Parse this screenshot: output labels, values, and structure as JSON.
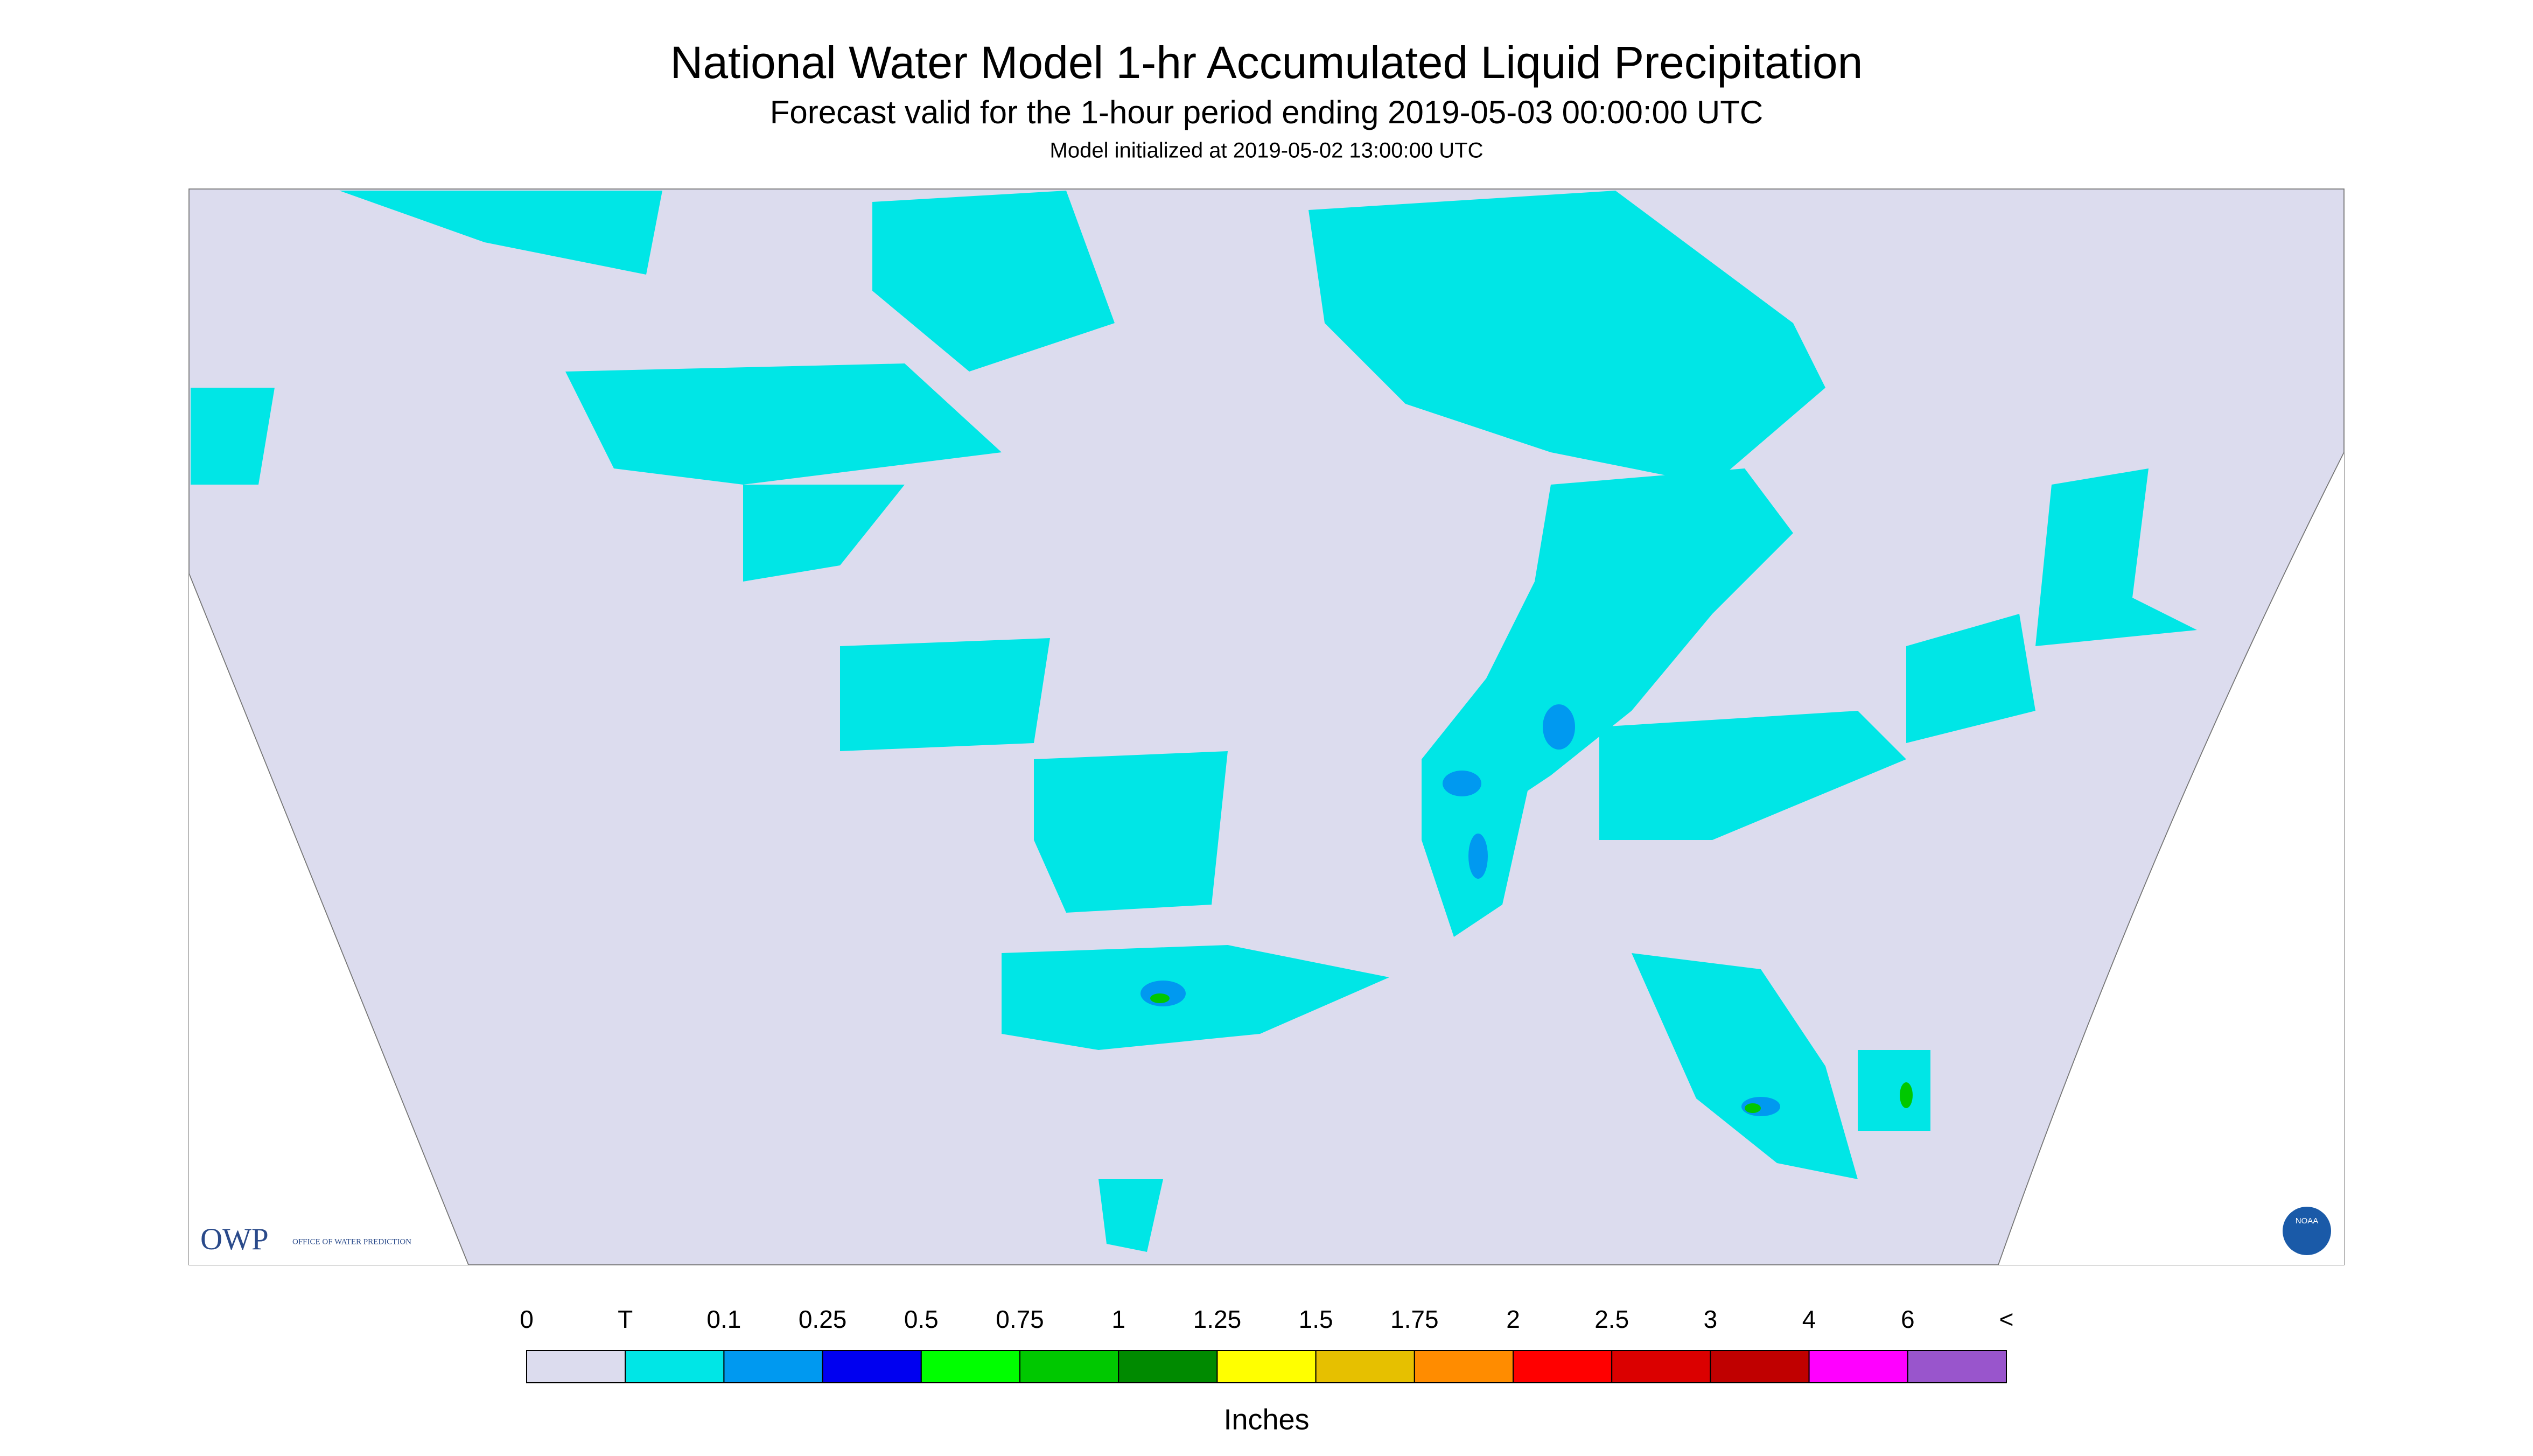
{
  "header": {
    "title": "National Water Model 1-hr Accumulated Liquid Precipitation",
    "subtitle": "Forecast valid for the 1-hour period ending 2019-05-03 00:00:00 UTC",
    "initialized": "Model initialized at 2019-05-02 13:00:00 UTC"
  },
  "logo": {
    "owp": "OWP",
    "office": "OFFICE OF WATER PREDICTION",
    "noaa": "NOAA"
  },
  "legend": {
    "labels": [
      "0",
      "T",
      "0.1",
      "0.25",
      "0.5",
      "0.75",
      "1",
      "1.25",
      "1.5",
      "1.75",
      "2",
      "2.5",
      "3",
      "4",
      "6",
      "<"
    ],
    "colors": [
      "#dcdcee",
      "#00e6e6",
      "#0099f0",
      "#0000f0",
      "#00ff00",
      "#00c800",
      "#008a00",
      "#ffff00",
      "#e6c000",
      "#ff8c00",
      "#ff0000",
      "#db0000",
      "#c00000",
      "#ff00ff",
      "#9955cc"
    ],
    "unit": "Inches"
  }
}
